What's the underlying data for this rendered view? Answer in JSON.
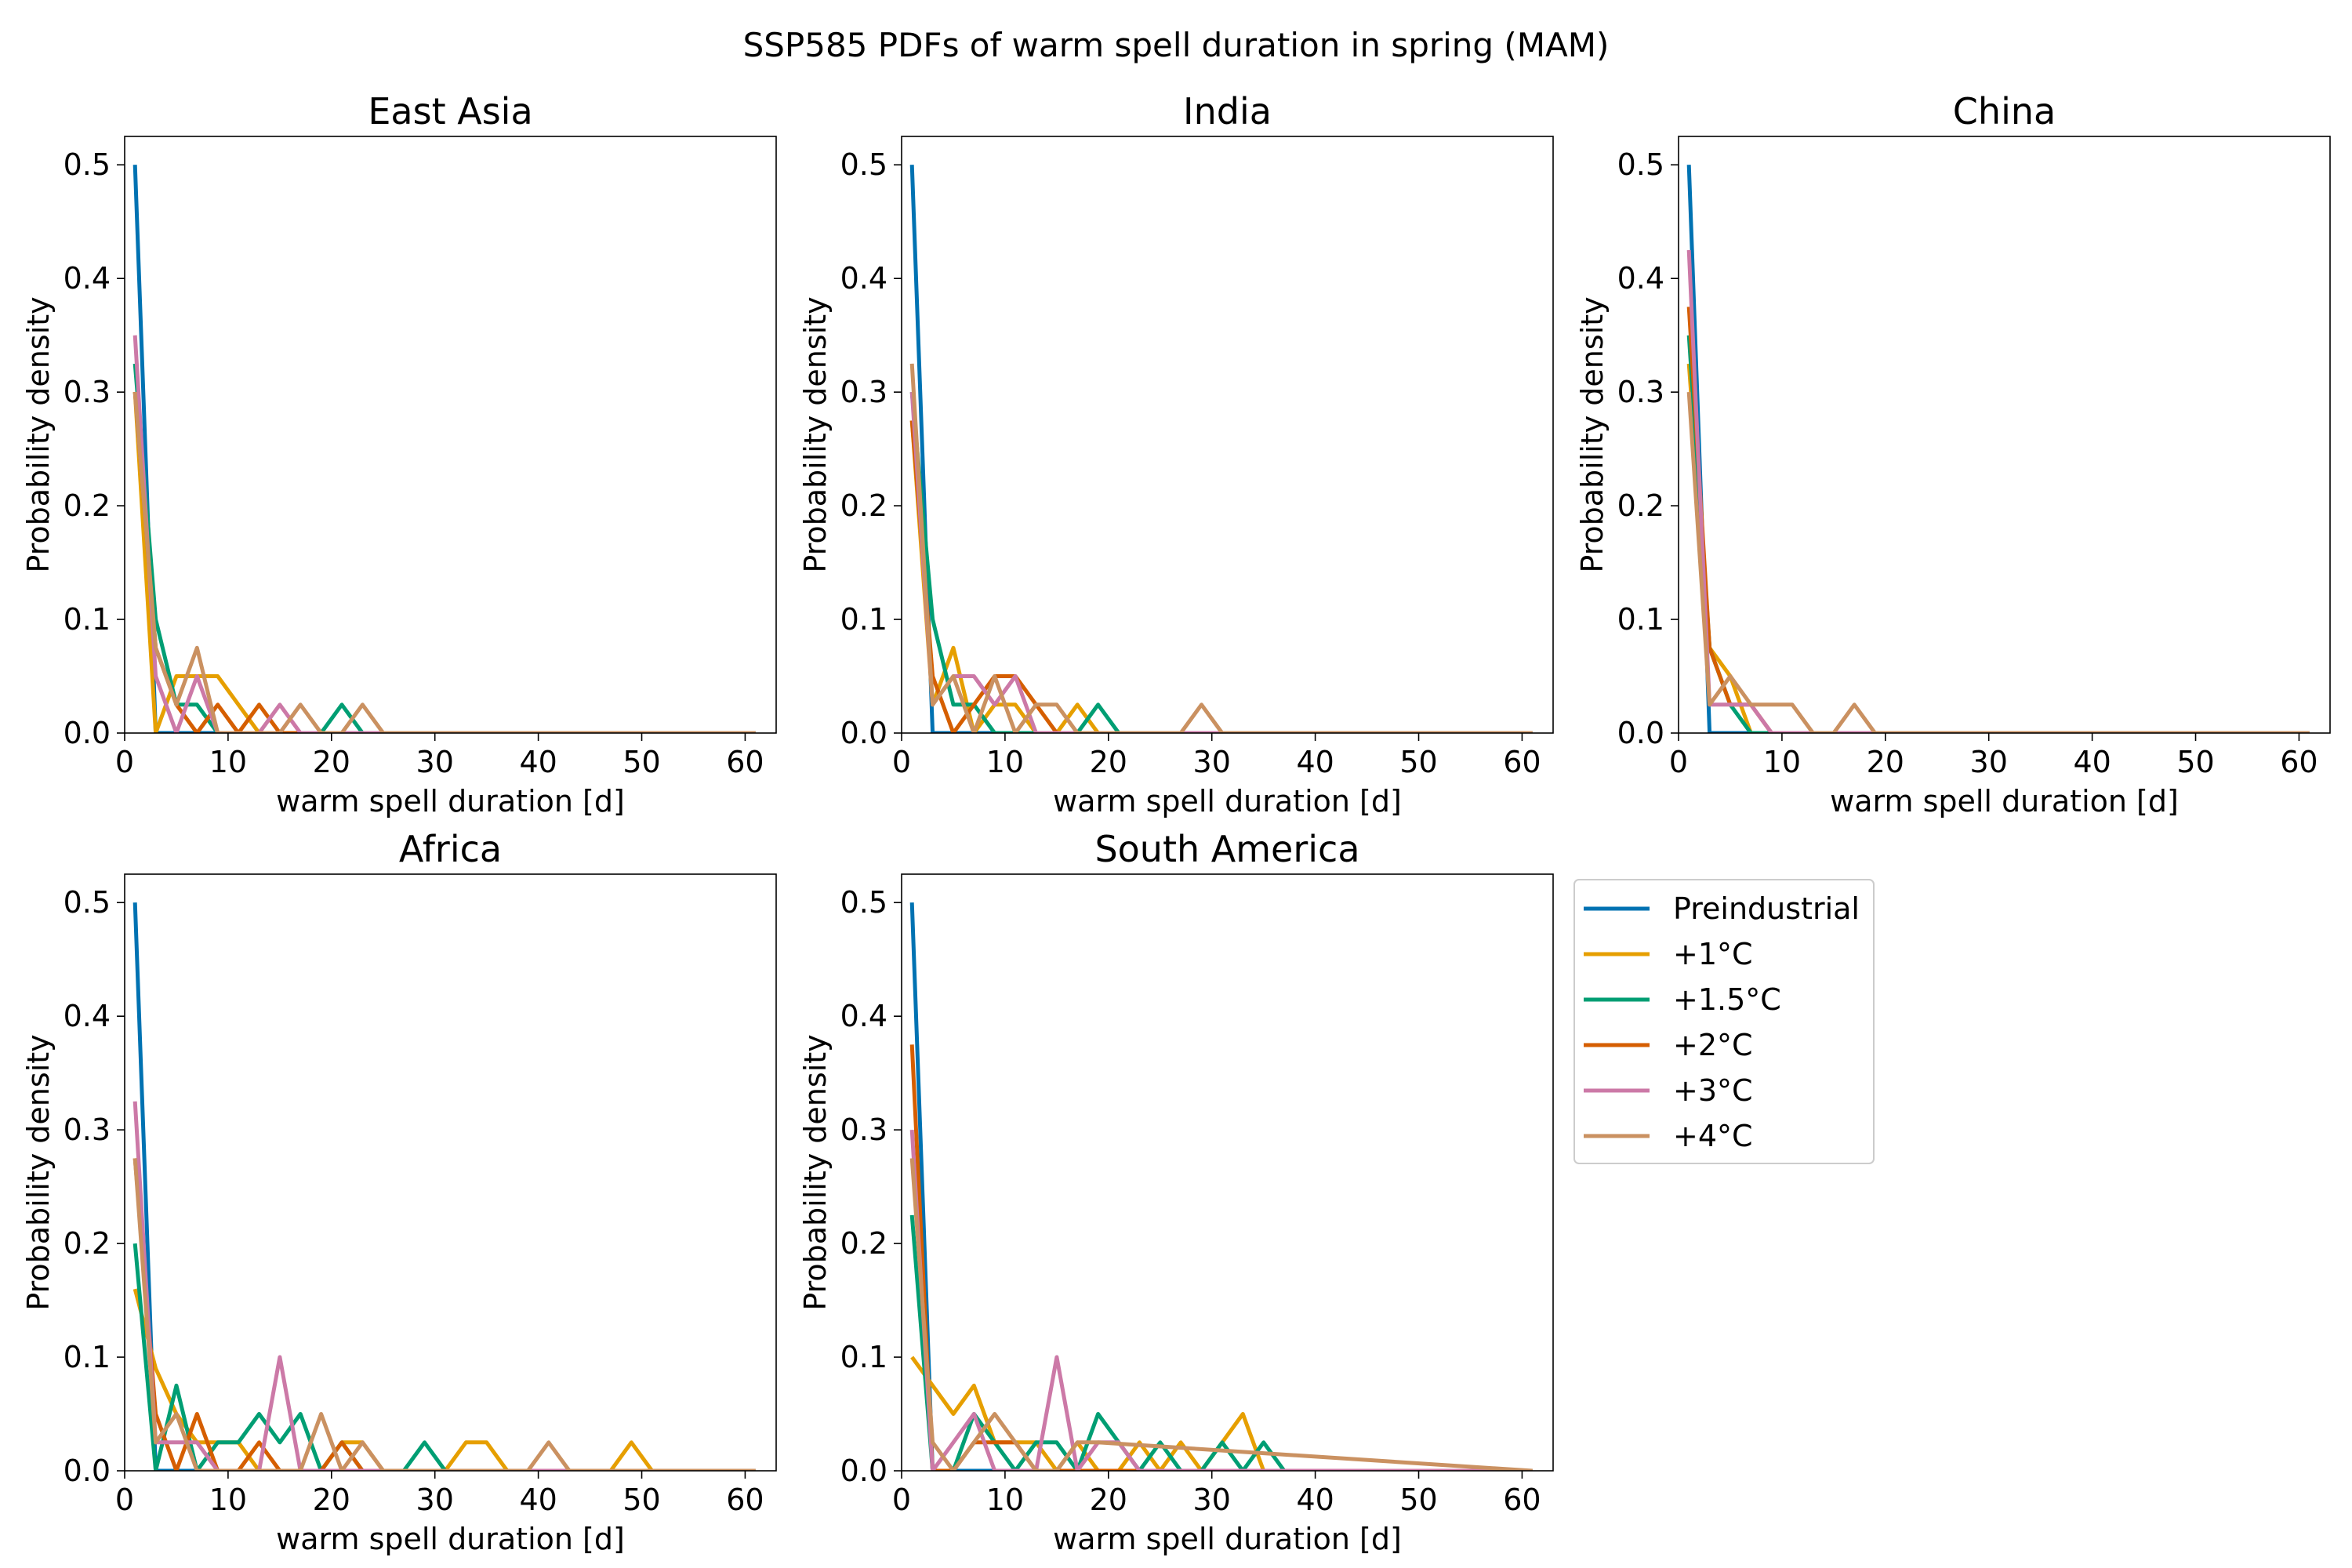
{
  "figure": {
    "title": "SSP585 PDFs of warm spell duration in spring (MAM)",
    "colors": {
      "Preindustrial": "#0072b2",
      "+1°C": "#e69f00",
      "+1.5°C": "#009e73",
      "+2°C": "#d55e00",
      "+3°C": "#cc79a7",
      "+4°C": "#ca9161"
    }
  },
  "chart_data": [
    {
      "type": "line",
      "title": "East Asia",
      "xlabel": "warm spell duration [d]",
      "ylabel": "Probability density",
      "xlim": [
        0,
        63
      ],
      "ylim": [
        0,
        0.525
      ],
      "xticks": [
        "0",
        "10",
        "20",
        "30",
        "40",
        "50",
        "60"
      ],
      "yticks": [
        "0.0",
        "0.1",
        "0.2",
        "0.3",
        "0.4",
        "0.5"
      ],
      "series": [
        {
          "name": "Preindustrial",
          "x": [
            1,
            3,
            5,
            7,
            9,
            61
          ],
          "y": [
            0.5,
            0.0,
            0.0,
            0.0,
            0.0,
            0.0
          ]
        },
        {
          "name": "+1°C",
          "x": [
            1,
            3,
            5,
            7,
            9,
            11,
            13,
            15,
            61
          ],
          "y": [
            0.3,
            0.0,
            0.05,
            0.05,
            0.05,
            0.025,
            0.0,
            0.0,
            0.0
          ]
        },
        {
          "name": "+1.5°C",
          "x": [
            1,
            3,
            5,
            7,
            9,
            11,
            13,
            15,
            17,
            19,
            21,
            23,
            25,
            61
          ],
          "y": [
            0.325,
            0.1,
            0.025,
            0.025,
            0.0,
            0.0,
            0.0,
            0.0,
            0.0,
            0.0,
            0.025,
            0.0,
            0.0,
            0.0
          ]
        },
        {
          "name": "+2°C",
          "x": [
            1,
            3,
            5,
            7,
            9,
            11,
            13,
            15,
            17,
            61
          ],
          "y": [
            0.3,
            0.075,
            0.025,
            0.0,
            0.025,
            0.0,
            0.025,
            0.0,
            0.0,
            0.0
          ]
        },
        {
          "name": "+3°C",
          "x": [
            1,
            3,
            5,
            7,
            9,
            11,
            13,
            15,
            17,
            61
          ],
          "y": [
            0.35,
            0.05,
            0.0,
            0.05,
            0.0,
            0.0,
            0.0,
            0.025,
            0.0,
            0.0
          ]
        },
        {
          "name": "+4°C",
          "x": [
            1,
            3,
            5,
            7,
            9,
            11,
            13,
            15,
            17,
            19,
            21,
            23,
            25,
            61
          ],
          "y": [
            0.3,
            0.075,
            0.025,
            0.075,
            0.0,
            0.0,
            0.0,
            0.0,
            0.025,
            0.0,
            0.0,
            0.025,
            0.0,
            0.0
          ]
        }
      ]
    },
    {
      "type": "line",
      "title": "India",
      "xlabel": "warm spell duration [d]",
      "ylabel": "Probability density",
      "xlim": [
        0,
        63
      ],
      "ylim": [
        0,
        0.525
      ],
      "xticks": [
        "0",
        "10",
        "20",
        "30",
        "40",
        "50",
        "60"
      ],
      "yticks": [
        "0.0",
        "0.1",
        "0.2",
        "0.3",
        "0.4",
        "0.5"
      ],
      "series": [
        {
          "name": "Preindustrial",
          "x": [
            1,
            3,
            5,
            61
          ],
          "y": [
            0.5,
            0.0,
            0.0,
            0.0
          ]
        },
        {
          "name": "+1°C",
          "x": [
            1,
            3,
            5,
            7,
            9,
            11,
            13,
            15,
            17,
            19,
            61
          ],
          "y": [
            0.275,
            0.025,
            0.075,
            0.0,
            0.025,
            0.025,
            0.0,
            0.0,
            0.025,
            0.0,
            0.0
          ]
        },
        {
          "name": "+1.5°C",
          "x": [
            1,
            3,
            5,
            7,
            9,
            11,
            13,
            15,
            17,
            19,
            21,
            61
          ],
          "y": [
            0.3,
            0.1,
            0.025,
            0.025,
            0.0,
            0.0,
            0.0,
            0.0,
            0.0,
            0.025,
            0.0,
            0.0
          ]
        },
        {
          "name": "+2°C",
          "x": [
            1,
            3,
            5,
            7,
            9,
            11,
            13,
            15,
            61
          ],
          "y": [
            0.275,
            0.05,
            0.0,
            0.025,
            0.05,
            0.05,
            0.025,
            0.0,
            0.0
          ]
        },
        {
          "name": "+3°C",
          "x": [
            1,
            3,
            5,
            7,
            9,
            11,
            13,
            15,
            61
          ],
          "y": [
            0.3,
            0.025,
            0.05,
            0.05,
            0.025,
            0.05,
            0.0,
            0.0,
            0.0
          ]
        },
        {
          "name": "+4°C",
          "x": [
            1,
            3,
            5,
            7,
            9,
            11,
            13,
            15,
            17,
            19,
            21,
            23,
            25,
            27,
            29,
            31,
            61
          ],
          "y": [
            0.325,
            0.025,
            0.05,
            0.0,
            0.05,
            0.0,
            0.025,
            0.025,
            0.0,
            0.0,
            0.0,
            0.0,
            0.0,
            0.0,
            0.025,
            0.0,
            0.0
          ]
        }
      ]
    },
    {
      "type": "line",
      "title": "China",
      "xlabel": "warm spell duration [d]",
      "ylabel": "Probability density",
      "xlim": [
        0,
        63
      ],
      "ylim": [
        0,
        0.525
      ],
      "xticks": [
        "0",
        "10",
        "20",
        "30",
        "40",
        "50",
        "60"
      ],
      "yticks": [
        "0.0",
        "0.1",
        "0.2",
        "0.3",
        "0.4",
        "0.5"
      ],
      "series": [
        {
          "name": "Preindustrial",
          "x": [
            1,
            3,
            61
          ],
          "y": [
            0.5,
            0.0,
            0.0
          ]
        },
        {
          "name": "+1°C",
          "x": [
            1,
            3,
            5,
            7,
            61
          ],
          "y": [
            0.325,
            0.075,
            0.05,
            0.0,
            0.0
          ]
        },
        {
          "name": "+1.5°C",
          "x": [
            1,
            3,
            5,
            7,
            61
          ],
          "y": [
            0.35,
            0.075,
            0.025,
            0.0,
            0.0
          ]
        },
        {
          "name": "+2°C",
          "x": [
            1,
            3,
            5,
            7,
            9,
            61
          ],
          "y": [
            0.375,
            0.075,
            0.025,
            0.025,
            0.0,
            0.0
          ]
        },
        {
          "name": "+3°C",
          "x": [
            1,
            3,
            5,
            7,
            9,
            61
          ],
          "y": [
            0.425,
            0.025,
            0.025,
            0.025,
            0.0,
            0.0
          ]
        },
        {
          "name": "+4°C",
          "x": [
            1,
            3,
            5,
            7,
            9,
            11,
            13,
            15,
            17,
            19,
            61
          ],
          "y": [
            0.3,
            0.025,
            0.05,
            0.025,
            0.025,
            0.025,
            0.0,
            0.0,
            0.025,
            0.0,
            0.0
          ]
        }
      ]
    },
    {
      "type": "line",
      "title": "Africa",
      "xlabel": "warm spell duration [d]",
      "ylabel": "Probability density",
      "xlim": [
        0,
        63
      ],
      "ylim": [
        0,
        0.525
      ],
      "xticks": [
        "0",
        "10",
        "20",
        "30",
        "40",
        "50",
        "60"
      ],
      "yticks": [
        "0.0",
        "0.1",
        "0.2",
        "0.3",
        "0.4",
        "0.5"
      ],
      "series": [
        {
          "name": "Preindustrial",
          "x": [
            1,
            3,
            5,
            61
          ],
          "y": [
            0.5,
            0.0,
            0.0,
            0.0
          ]
        },
        {
          "name": "+1°C",
          "x": [
            1,
            3,
            5,
            7,
            9,
            11,
            13,
            15,
            17,
            19,
            21,
            23,
            25,
            27,
            29,
            31,
            33,
            35,
            37,
            39,
            41,
            43,
            45,
            47,
            49,
            51,
            61
          ],
          "y": [
            0.16,
            0.09,
            0.05,
            0.025,
            0.025,
            0.025,
            0.0,
            0.0,
            0.0,
            0.0,
            0.025,
            0.025,
            0.0,
            0.0,
            0.0,
            0.0,
            0.025,
            0.025,
            0.0,
            0.0,
            0.0,
            0.0,
            0.0,
            0.0,
            0.025,
            0.0,
            0.0
          ]
        },
        {
          "name": "+1.5°C",
          "x": [
            1,
            3,
            5,
            7,
            9,
            11,
            13,
            15,
            17,
            19,
            21,
            23,
            25,
            27,
            29,
            31,
            61
          ],
          "y": [
            0.2,
            0.0,
            0.075,
            0.0,
            0.025,
            0.025,
            0.05,
            0.025,
            0.05,
            0.0,
            0.025,
            0.0,
            0.0,
            0.0,
            0.025,
            0.0,
            0.0
          ]
        },
        {
          "name": "+2°C",
          "x": [
            1,
            3,
            5,
            7,
            9,
            11,
            13,
            15,
            17,
            19,
            21,
            23,
            61
          ],
          "y": [
            0.275,
            0.05,
            0.0,
            0.05,
            0.0,
            0.0,
            0.025,
            0.0,
            0.0,
            0.0,
            0.025,
            0.0,
            0.0
          ]
        },
        {
          "name": "+3°C",
          "x": [
            1,
            3,
            5,
            7,
            9,
            11,
            13,
            15,
            17,
            61
          ],
          "y": [
            0.325,
            0.025,
            0.025,
            0.025,
            0.0,
            0.0,
            0.0,
            0.1,
            0.0,
            0.0
          ]
        },
        {
          "name": "+4°C",
          "x": [
            1,
            3,
            5,
            7,
            9,
            11,
            13,
            15,
            17,
            19,
            21,
            23,
            25,
            27,
            29,
            31,
            33,
            35,
            37,
            39,
            41,
            43,
            61
          ],
          "y": [
            0.275,
            0.025,
            0.05,
            0.0,
            0.0,
            0.0,
            0.0,
            0.0,
            0.0,
            0.05,
            0.0,
            0.025,
            0.0,
            0.0,
            0.0,
            0.0,
            0.0,
            0.0,
            0.0,
            0.0,
            0.025,
            0.0,
            0.0
          ]
        }
      ]
    },
    {
      "type": "line",
      "title": "South America",
      "xlabel": "warm spell duration [d]",
      "ylabel": "Probability density",
      "xlim": [
        0,
        63
      ],
      "ylim": [
        0,
        0.525
      ],
      "xticks": [
        "0",
        "10",
        "20",
        "30",
        "40",
        "50",
        "60"
      ],
      "yticks": [
        "0.0",
        "0.1",
        "0.2",
        "0.3",
        "0.4",
        "0.5"
      ],
      "series": [
        {
          "name": "Preindustrial",
          "x": [
            1,
            3,
            61
          ],
          "y": [
            0.5,
            0.0,
            0.0
          ]
        },
        {
          "name": "+1°C",
          "x": [
            1,
            3,
            5,
            7,
            9,
            11,
            13,
            15,
            17,
            19,
            21,
            23,
            25,
            27,
            29,
            31,
            33,
            35,
            61
          ],
          "y": [
            0.1,
            0.075,
            0.05,
            0.075,
            0.025,
            0.025,
            0.025,
            0.0,
            0.025,
            0.0,
            0.0,
            0.025,
            0.0,
            0.025,
            0.0,
            0.025,
            0.05,
            0.0,
            0.0
          ]
        },
        {
          "name": "+1.5°C",
          "x": [
            1,
            3,
            5,
            7,
            9,
            11,
            13,
            15,
            17,
            19,
            21,
            23,
            25,
            27,
            29,
            31,
            33,
            35,
            37,
            61
          ],
          "y": [
            0.225,
            0.0,
            0.0,
            0.05,
            0.025,
            0.0,
            0.025,
            0.025,
            0.0,
            0.05,
            0.025,
            0.0,
            0.025,
            0.0,
            0.0,
            0.025,
            0.0,
            0.025,
            0.0,
            0.0
          ]
        },
        {
          "name": "+2°C",
          "x": [
            1,
            3,
            5,
            7,
            9,
            11,
            13,
            15,
            17,
            61
          ],
          "y": [
            0.375,
            0.0,
            0.0,
            0.025,
            0.025,
            0.025,
            0.0,
            0.0,
            0.0,
            0.0
          ]
        },
        {
          "name": "+3°C",
          "x": [
            1,
            3,
            5,
            7,
            9,
            11,
            13,
            15,
            17,
            19,
            21,
            23,
            61
          ],
          "y": [
            0.3,
            0.0,
            0.025,
            0.05,
            0.0,
            0.0,
            0.0,
            0.1,
            0.0,
            0.025,
            0.025,
            0.0,
            0.0
          ]
        },
        {
          "name": "+4°C",
          "x": [
            1,
            3,
            5,
            7,
            9,
            11,
            13,
            15,
            17,
            19,
            61
          ],
          "y": [
            0.275,
            0.025,
            0.0,
            0.025,
            0.05,
            0.025,
            0.0,
            0.0,
            0.025,
            0.025,
            0.0
          ]
        }
      ]
    }
  ],
  "legend": {
    "placement": "right of South America panel",
    "entries": [
      "Preindustrial",
      "+1°C",
      "+1.5°C",
      "+2°C",
      "+3°C",
      "+4°C"
    ]
  }
}
